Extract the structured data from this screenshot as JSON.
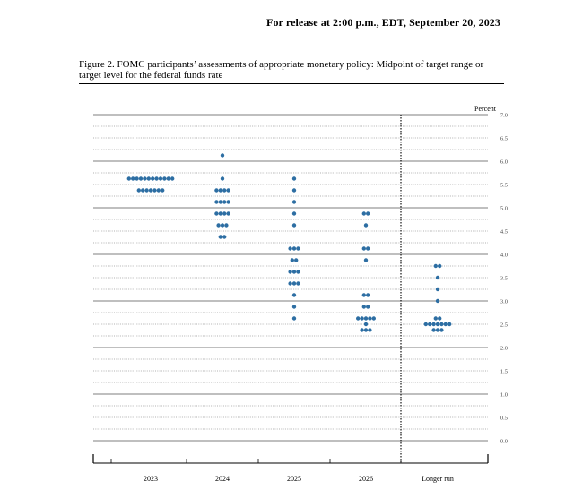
{
  "header": {
    "release": "For release at 2:00 p.m., EDT, September 20, 2023"
  },
  "figure": {
    "caption": "Figure 2.  FOMC participants’ assessments of appropriate monetary policy: Midpoint of target range or target level for the federal funds rate"
  },
  "chart_data": {
    "type": "scatter",
    "ylabel": "Percent",
    "ylim": [
      0,
      7
    ],
    "yticks": [
      "7.0",
      "6.5",
      "6.0",
      "5.5",
      "5.0",
      "4.5",
      "4.0",
      "3.5",
      "3.0",
      "2.5",
      "2.0",
      "1.5",
      "1.0",
      "0.5",
      "0.0"
    ],
    "ytick_values": [
      7.0,
      6.5,
      6.0,
      5.5,
      5.0,
      4.5,
      4.0,
      3.5,
      3.0,
      2.5,
      2.0,
      1.5,
      1.0,
      0.5,
      0.0
    ],
    "categories": [
      "2023",
      "2024",
      "2025",
      "2026",
      "Longer run"
    ],
    "grid": true,
    "divider_before": "Longer run",
    "dot_color": "#2d6ea3",
    "series": [
      {
        "category": "2023",
        "points": [
          {
            "y": 5.625,
            "count": 12
          },
          {
            "y": 5.375,
            "count": 7
          }
        ]
      },
      {
        "category": "2024",
        "points": [
          {
            "y": 6.125,
            "count": 1
          },
          {
            "y": 5.625,
            "count": 1
          },
          {
            "y": 5.375,
            "count": 4
          },
          {
            "y": 5.125,
            "count": 4
          },
          {
            "y": 4.875,
            "count": 4
          },
          {
            "y": 4.625,
            "count": 3
          },
          {
            "y": 4.375,
            "count": 2
          }
        ]
      },
      {
        "category": "2025",
        "points": [
          {
            "y": 5.625,
            "count": 1
          },
          {
            "y": 5.375,
            "count": 1
          },
          {
            "y": 5.125,
            "count": 1
          },
          {
            "y": 4.875,
            "count": 1
          },
          {
            "y": 4.625,
            "count": 1
          },
          {
            "y": 4.125,
            "count": 3
          },
          {
            "y": 3.875,
            "count": 2
          },
          {
            "y": 3.625,
            "count": 3
          },
          {
            "y": 3.375,
            "count": 3
          },
          {
            "y": 3.125,
            "count": 1
          },
          {
            "y": 2.875,
            "count": 1
          },
          {
            "y": 2.625,
            "count": 1
          }
        ]
      },
      {
        "category": "2026",
        "points": [
          {
            "y": 4.875,
            "count": 2
          },
          {
            "y": 4.625,
            "count": 1
          },
          {
            "y": 4.125,
            "count": 2
          },
          {
            "y": 3.875,
            "count": 1
          },
          {
            "y": 3.125,
            "count": 2
          },
          {
            "y": 2.875,
            "count": 2
          },
          {
            "y": 2.625,
            "count": 5
          },
          {
            "y": 2.5,
            "count": 1
          },
          {
            "y": 2.375,
            "count": 3
          }
        ]
      },
      {
        "category": "Longer run",
        "points": [
          {
            "y": 3.75,
            "count": 2
          },
          {
            "y": 3.5,
            "count": 1
          },
          {
            "y": 3.25,
            "count": 1
          },
          {
            "y": 3.0,
            "count": 1
          },
          {
            "y": 2.625,
            "count": 2
          },
          {
            "y": 2.5,
            "count": 7
          },
          {
            "y": 2.375,
            "count": 3
          }
        ]
      }
    ]
  }
}
